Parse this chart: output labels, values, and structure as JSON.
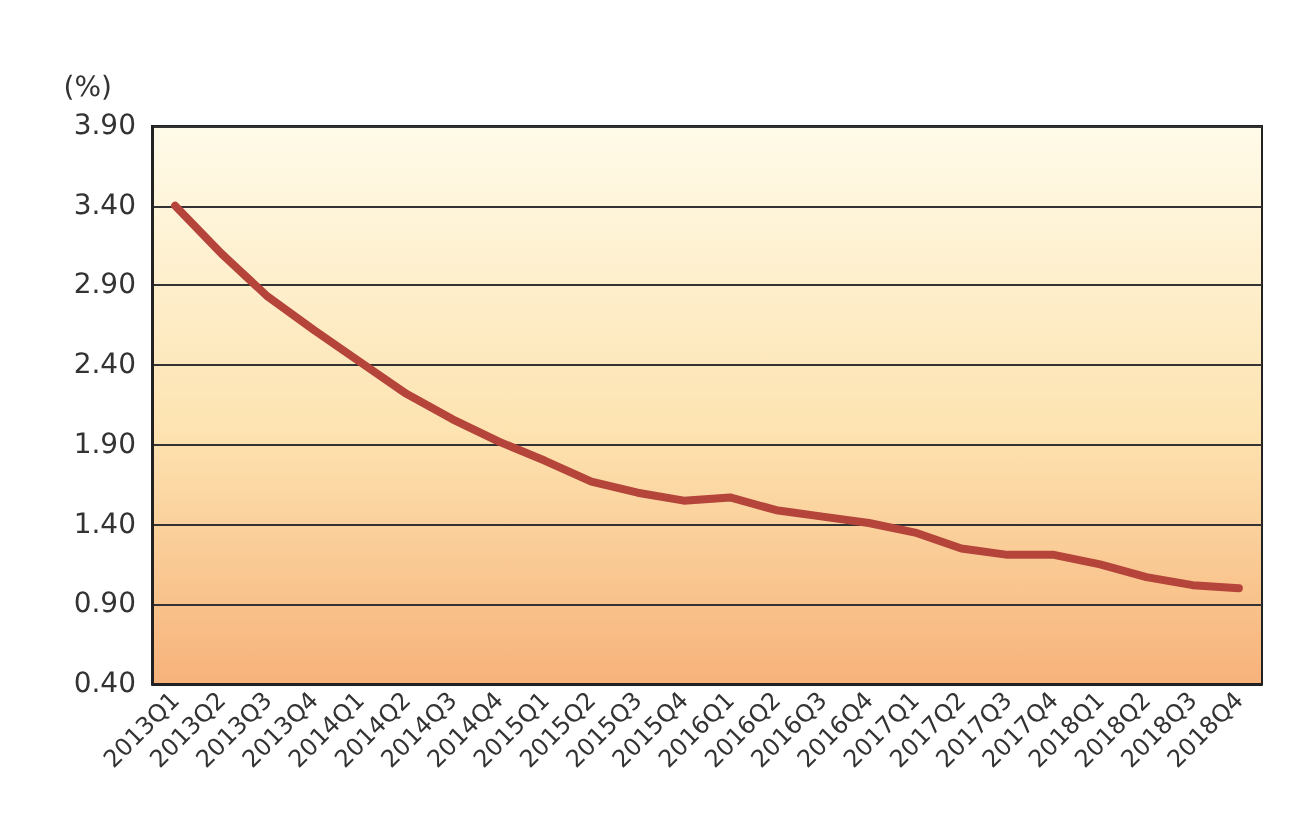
{
  "chart_data": {
    "type": "line",
    "ylabel": "(%)",
    "categories": [
      "2013Q1",
      "2013Q2",
      "2013Q3",
      "2013Q4",
      "2014Q1",
      "2014Q2",
      "2014Q3",
      "2014Q4",
      "2015Q1",
      "2015Q2",
      "2015Q3",
      "2015Q4",
      "2016Q1",
      "2016Q2",
      "2016Q3",
      "2016Q4",
      "2017Q1",
      "2017Q2",
      "2017Q3",
      "2017Q4",
      "2018Q1",
      "2018Q2",
      "2018Q3",
      "2018Q4"
    ],
    "series": [
      {
        "color": "#b5443a",
        "values": [
          3.4,
          3.1,
          2.83,
          2.62,
          2.42,
          2.22,
          2.06,
          1.92,
          1.8,
          1.67,
          1.6,
          1.55,
          1.57,
          1.49,
          1.45,
          1.41,
          1.35,
          1.25,
          1.21,
          1.21,
          1.15,
          1.07,
          1.02,
          1.0
        ]
      }
    ],
    "ylim": [
      0.4,
      3.9
    ],
    "yticks": [
      {
        "value": 0.4,
        "label": "0.40"
      },
      {
        "value": 0.9,
        "label": "0.90"
      },
      {
        "value": 1.4,
        "label": "1.40"
      },
      {
        "value": 1.9,
        "label": "1.90"
      },
      {
        "value": 2.4,
        "label": "2.40"
      },
      {
        "value": 2.9,
        "label": "2.90"
      },
      {
        "value": 3.4,
        "label": "3.40"
      },
      {
        "value": 3.9,
        "label": "3.90"
      }
    ],
    "grid": "y",
    "marker": "none",
    "line_style": "solid"
  }
}
